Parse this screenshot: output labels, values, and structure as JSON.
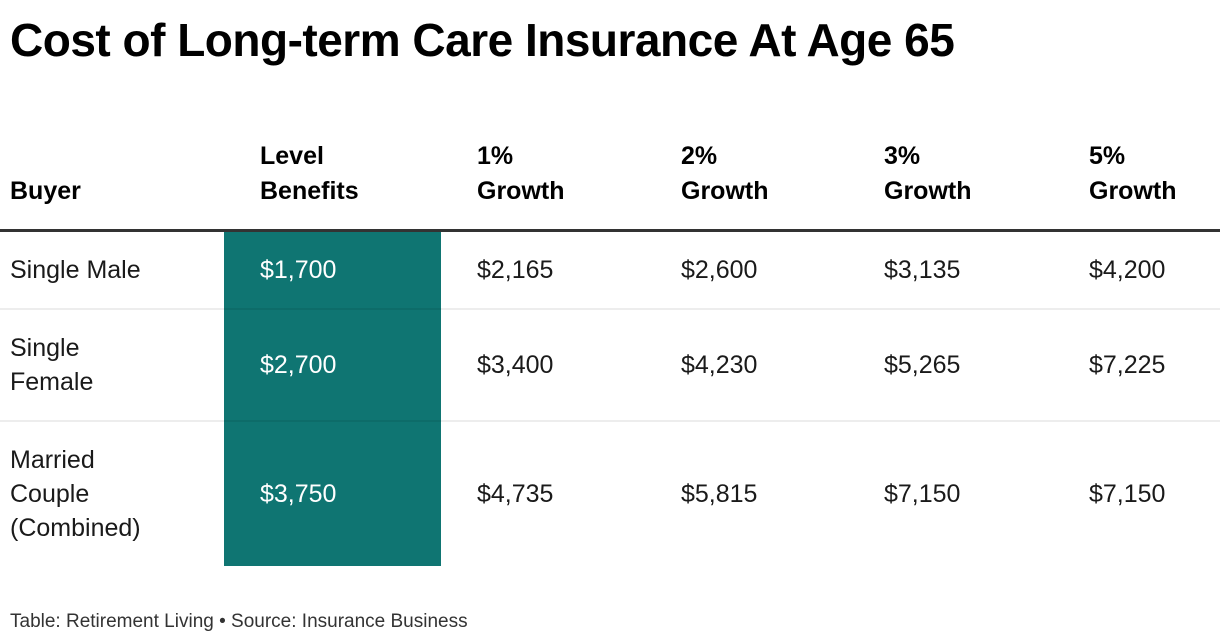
{
  "title": "Cost of Long-term Care Insurance At Age 65",
  "header": {
    "columns": [
      {
        "line1": "",
        "line2": "Buyer"
      },
      {
        "line1": "Level",
        "line2": "Benefits"
      },
      {
        "line1": "1%",
        "line2": "Growth"
      },
      {
        "line1": "2%",
        "line2": "Growth"
      },
      {
        "line1": "3%",
        "line2": "Growth"
      },
      {
        "line1": "5%",
        "line2": "Growth"
      }
    ]
  },
  "rows": [
    {
      "buyer_lines": [
        "Single Male"
      ],
      "values": [
        "$1,700",
        "$2,165",
        "$2,600",
        "$3,135",
        "$4,200"
      ]
    },
    {
      "buyer_lines": [
        "Single",
        "Female"
      ],
      "values": [
        "$2,700",
        "$3,400",
        "$4,230",
        "$5,265",
        "$7,225"
      ]
    },
    {
      "buyer_lines": [
        "Married",
        "Couple",
        "(Combined)"
      ],
      "values": [
        "$3,750",
        "$4,735",
        "$5,815",
        "$7,150",
        "$7,150"
      ]
    }
  ],
  "footer": "Table: Retirement Living • Source: Insurance Business",
  "colors": {
    "highlight": "#0F7572",
    "highlight_text": "#FFFFFF",
    "header_rule": "#333333",
    "row_rule_hex_on_white": "#EDEDED",
    "title_text": "#000000",
    "body_text": "#1A1A1A",
    "attribution_text": "#333333"
  },
  "chart_data": {
    "type": "table",
    "title": "Cost of Long-term Care Insurance At Age 65",
    "columns": [
      "Buyer",
      "Level Benefits",
      "1% Growth",
      "2% Growth",
      "3% Growth",
      "5% Growth"
    ],
    "rows": [
      [
        "Single Male",
        1700,
        2165,
        2600,
        3135,
        4200
      ],
      [
        "Single Female",
        2700,
        3400,
        4230,
        5265,
        7225
      ],
      [
        "Married Couple (Combined)",
        3750,
        4735,
        5815,
        7150,
        7150
      ]
    ],
    "value_unit": "USD per year",
    "highlighted_column": "Level Benefits",
    "attribution": "Table: Retirement Living • Source: Insurance Business"
  }
}
